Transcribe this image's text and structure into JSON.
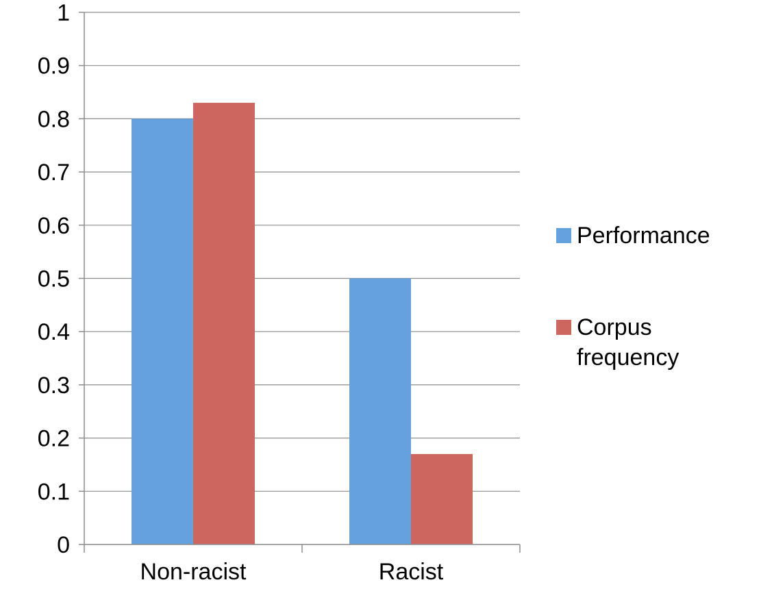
{
  "chart_data": {
    "type": "bar",
    "categories": [
      "Non-racist",
      "Racist"
    ],
    "series": [
      {
        "name": "Performance",
        "values": [
          0.8,
          0.5
        ],
        "color": "#65A1DC"
      },
      {
        "name": "Corpus frequency",
        "legend_lines": [
          "Corpus",
          "frequency"
        ],
        "values": [
          0.83,
          0.17
        ],
        "color": "#CD665F"
      }
    ],
    "title": "",
    "xlabel": "",
    "ylabel": "",
    "ylim": [
      0,
      1
    ],
    "yticks": [
      "0",
      "0.1",
      "0.2",
      "0.3",
      "0.4",
      "0.5",
      "0.6",
      "0.7",
      "0.8",
      "0.9",
      "1"
    ],
    "grid": true,
    "legend_position": "right"
  }
}
